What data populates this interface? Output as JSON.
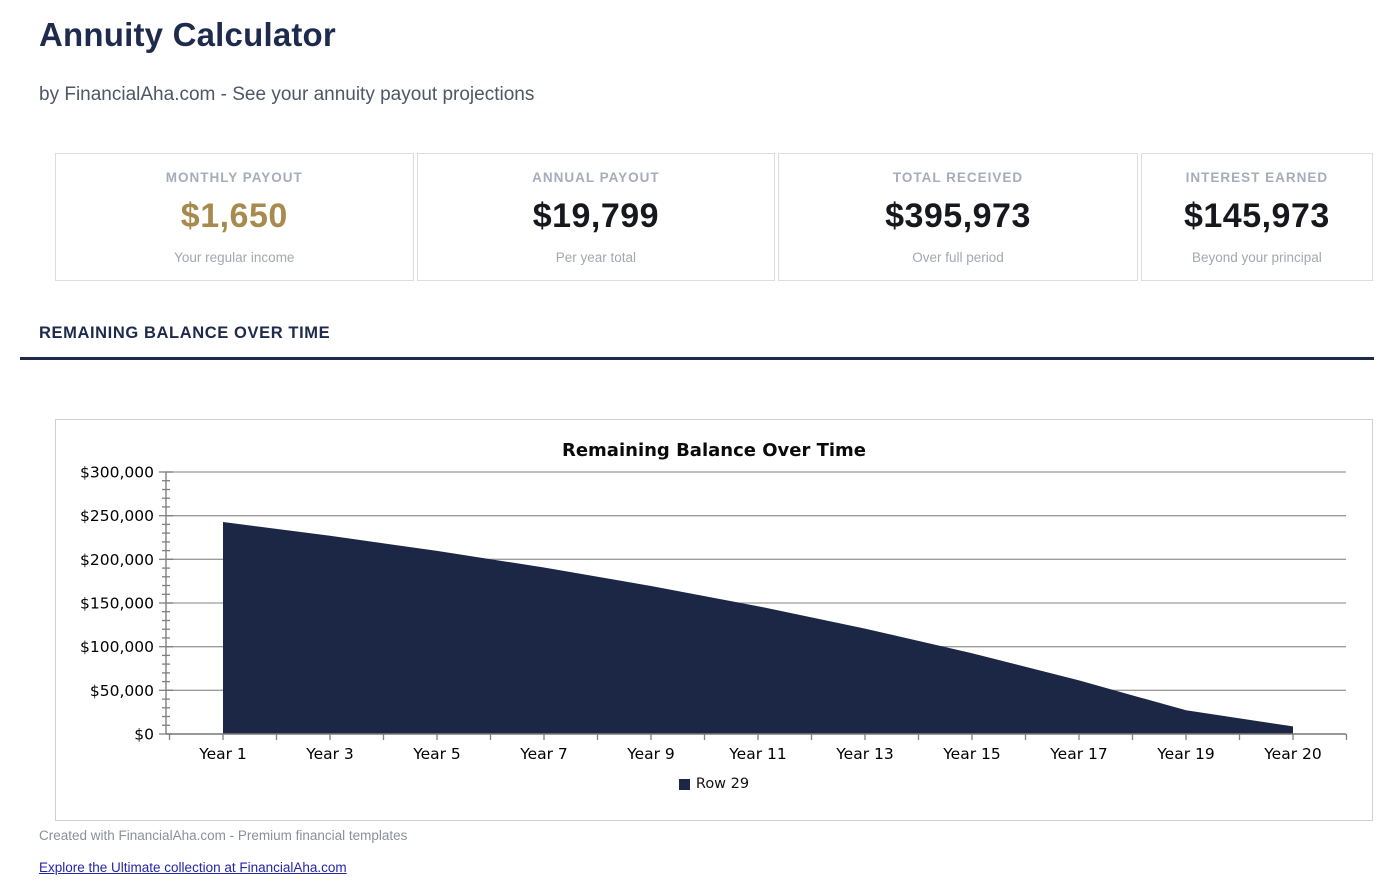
{
  "page": {
    "title": "Annuity Calculator",
    "subtitle": "by FinancialAha.com - See your annuity payout projections"
  },
  "stats": {
    "cards": [
      {
        "label": "MONTHLY PAYOUT",
        "value": "$1,650",
        "sub": "Your regular income",
        "value_color": "#a78a4d"
      },
      {
        "label": "ANNUAL PAYOUT",
        "value": "$19,799",
        "sub": "Per year total",
        "value_color": "#16181d"
      },
      {
        "label": "TOTAL RECEIVED",
        "value": "$395,973",
        "sub": "Over full period",
        "value_color": "#16181d"
      },
      {
        "label": "INTEREST EARNED",
        "value": "$145,973",
        "sub": "Beyond your principal",
        "value_color": "#16181d"
      }
    ]
  },
  "section": {
    "heading": "REMAINING BALANCE OVER TIME"
  },
  "chart_data": {
    "type": "area",
    "title": "Remaining Balance Over Time",
    "categories": [
      "Year 1",
      "Year 3",
      "Year 5",
      "Year 7",
      "Year 9",
      "Year 11",
      "Year 13",
      "Year 15",
      "Year 17",
      "Year 19",
      "Year 20"
    ],
    "series": [
      {
        "name": "Row 29",
        "values": [
          242700,
          227000,
          209700,
          190600,
          169500,
          146300,
          120700,
          92500,
          61400,
          27100,
          8700
        ]
      }
    ],
    "xlabel": "",
    "ylabel": "",
    "ylim": [
      0,
      300000
    ],
    "y_major_step": 50000,
    "y_minor_step": 10000,
    "y_tick_labels": [
      "$0",
      "$50,000",
      "$100,000",
      "$150,000",
      "$200,000",
      "$250,000",
      "$300,000"
    ],
    "grid": "horizontal-major-on",
    "legend": {
      "label": "Row 29",
      "position": "bottom"
    },
    "colors": {
      "area": "#1b2744",
      "axis": "#7f7f7f",
      "gridline": "#9b9b9b",
      "tick": "#7f7f7f"
    }
  },
  "footer": {
    "credit": "Created with FinancialAha.com - Premium financial templates",
    "link_label": "Explore the Ultimate collection at FinancialAha.com"
  }
}
